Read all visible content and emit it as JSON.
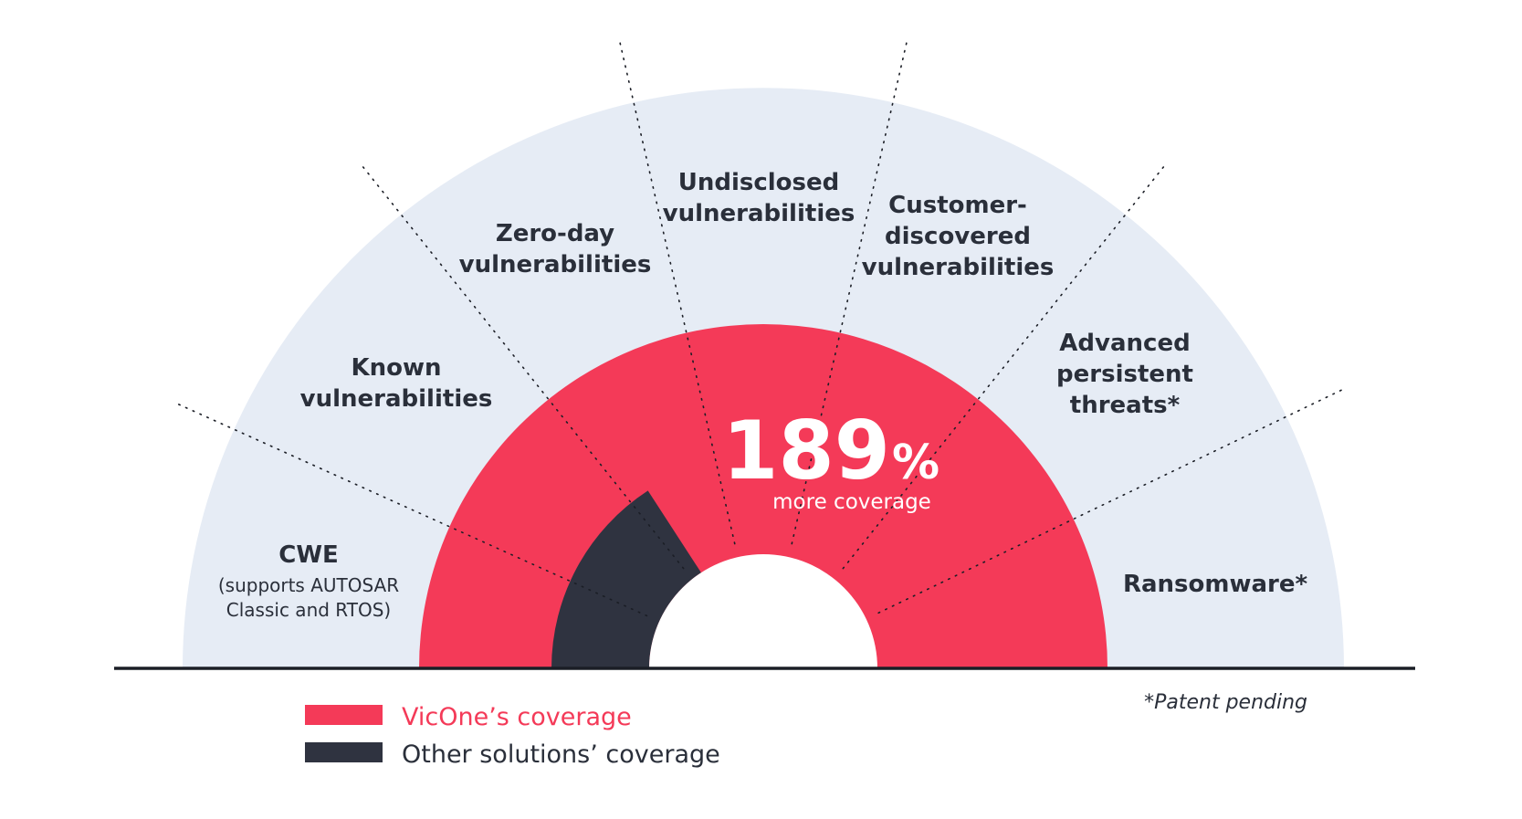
{
  "segments": [
    {
      "id": "cwe",
      "title_lines": [
        "CWE"
      ],
      "subtitle_lines": [
        "(supports AUTOSAR",
        "Classic and RTOS)"
      ]
    },
    {
      "id": "known",
      "title_lines": [
        "Known",
        "vulnerabilities"
      ],
      "subtitle_lines": []
    },
    {
      "id": "zero-day",
      "title_lines": [
        "Zero-day",
        "vulnerabilities"
      ],
      "subtitle_lines": []
    },
    {
      "id": "undisclosed",
      "title_lines": [
        "Undisclosed",
        "vulnerabilities"
      ],
      "subtitle_lines": []
    },
    {
      "id": "customer-discovered",
      "title_lines": [
        "Customer-",
        "discovered",
        "vulnerabilities"
      ],
      "subtitle_lines": []
    },
    {
      "id": "apt",
      "title_lines": [
        "Advanced",
        "persistent",
        "threats*"
      ],
      "subtitle_lines": []
    },
    {
      "id": "ransomware",
      "title_lines": [
        "Ransomware*"
      ],
      "subtitle_lines": []
    }
  ],
  "center": {
    "number": "189",
    "percent_sign": "%",
    "caption": "more coverage"
  },
  "footnote": "*Patent pending",
  "legend": [
    {
      "label": "VicOne’s coverage",
      "color": "#f43a58",
      "text_color": "#f43a58"
    },
    {
      "label": "Other solutions’ coverage",
      "color": "#2f3340",
      "text_color": "#2a2f3a"
    }
  ],
  "colors": {
    "background_arc": "#e6ecf5",
    "vicone": "#f43a58",
    "others": "#2f3340",
    "text": "#2a2f3a",
    "baseline": "#1b1e26"
  }
}
